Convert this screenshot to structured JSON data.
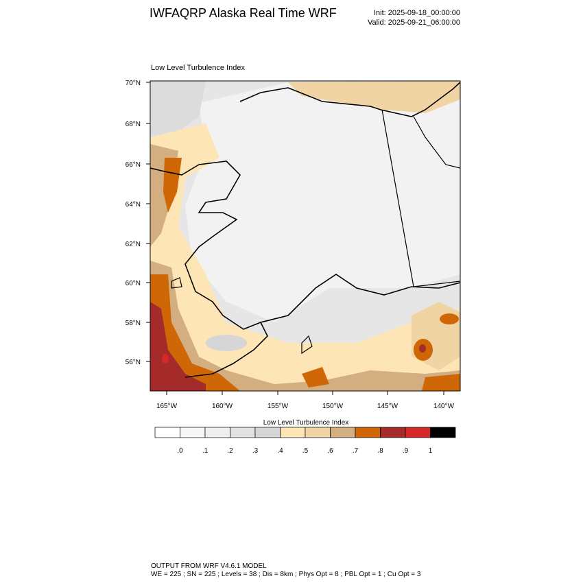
{
  "header": {
    "title": "IWFAQRP Alaska Real Time WRF",
    "init": "Init: 2025-09-18_00:00:00",
    "valid": "Valid: 2025-09-21_06:00:00"
  },
  "map": {
    "title": "Low Level Turbulence Index",
    "lat_labels": [
      "70°N",
      "68°N",
      "66°N",
      "64°N",
      "62°N",
      "60°N",
      "58°N",
      "56°N"
    ],
    "lon_labels": [
      "165°W",
      "160°W",
      "155°W",
      "150°W",
      "145°W",
      "140°W"
    ]
  },
  "colorbar": {
    "title": "Low Level Turbulence Index",
    "colors": [
      "#ffffff",
      "#f7f7f7",
      "#efefef",
      "#e2e2e2",
      "#d6d6d6",
      "#fde5b6",
      "#f1d4a3",
      "#d3ae80",
      "#cf6707",
      "#a52a2a",
      "#d62828",
      "#000000"
    ],
    "labels": [
      ".0",
      ".1",
      ".2",
      ".3",
      ".4",
      ".5",
      ".6",
      ".7",
      ".8",
      ".9",
      "1"
    ]
  },
  "footer": {
    "line1": "OUTPUT FROM WRF V4.6.1 MODEL",
    "line2": "WE = 225 ; SN = 225 ; Levels = 38 ; Dis = 8km ; Phys Opt = 8 ; PBL Opt = 1 ; Cu Opt = 3"
  }
}
